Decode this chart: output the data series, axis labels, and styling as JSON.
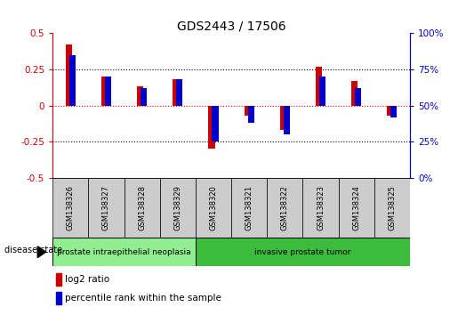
{
  "title": "GDS2443 / 17506",
  "samples": [
    "GSM138326",
    "GSM138327",
    "GSM138328",
    "GSM138329",
    "GSM138320",
    "GSM138321",
    "GSM138322",
    "GSM138323",
    "GSM138324",
    "GSM138325"
  ],
  "log2_ratio": [
    0.42,
    0.2,
    0.13,
    0.18,
    -0.3,
    -0.07,
    -0.17,
    0.27,
    0.17,
    -0.07
  ],
  "percentile_rank_pct": [
    85,
    70,
    62,
    68,
    25,
    38,
    30,
    70,
    62,
    42
  ],
  "disease_groups": [
    {
      "label": "prostate intraepithelial neoplasia",
      "start": 0,
      "end": 4,
      "color": "#90ee90"
    },
    {
      "label": "invasive prostate tumor",
      "start": 4,
      "end": 10,
      "color": "#3dbb3d"
    }
  ],
  "ylim": [
    -0.5,
    0.5
  ],
  "yticks_left": [
    -0.5,
    -0.25,
    0,
    0.25,
    0.5
  ],
  "yticks_right_pct": [
    0,
    25,
    50,
    75,
    100
  ],
  "red_color": "#cc0000",
  "blue_color": "#0000cc",
  "legend_red_label": "log2 ratio",
  "legend_blue_label": "percentile rank within the sample",
  "disease_state_label": "disease state",
  "label_box_color": "#cccccc",
  "bar_width": 0.18
}
